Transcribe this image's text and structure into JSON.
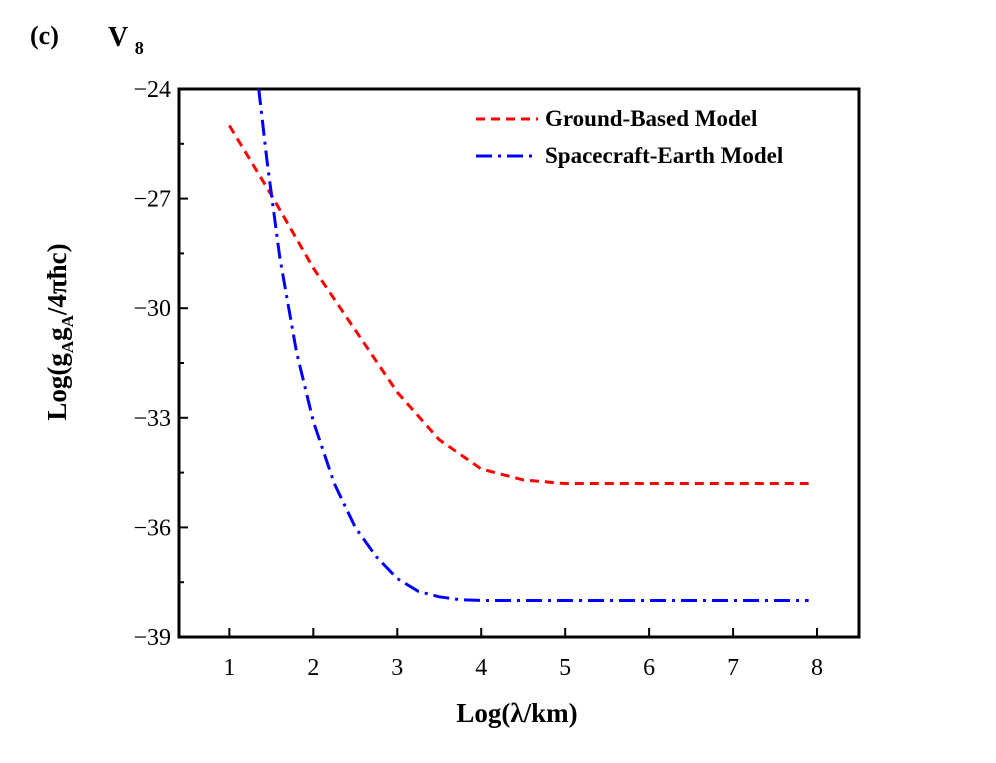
{
  "chart_data": {
    "type": "line",
    "panel_label": "(c)",
    "title": "V",
    "title_subscript": "8",
    "xlabel": "Log(λ/km)",
    "ylabel": {
      "prefix": "Log(g",
      "sub1": "A",
      "mid": "g",
      "sub2": "A",
      "suffix": "/4πħc)"
    },
    "xlim": [
      0.4,
      8.5
    ],
    "ylim": [
      -39,
      -24
    ],
    "xticks": [
      1,
      2,
      3,
      4,
      5,
      6,
      7,
      8
    ],
    "yticks": [
      -24,
      -27,
      -30,
      -33,
      -36,
      -39
    ],
    "xtick_labels": [
      "1",
      "2",
      "3",
      "4",
      "5",
      "6",
      "7",
      "8"
    ],
    "ytick_labels": [
      "−24",
      "−27",
      "−30",
      "−33",
      "−36",
      "−39"
    ],
    "grid": false,
    "legend_position": "top-right",
    "series": [
      {
        "name": "Ground-Based Model",
        "color": "#ff0000",
        "style": "dashed",
        "x": [
          1.0,
          1.5,
          2.0,
          2.5,
          3.0,
          3.5,
          4.0,
          4.5,
          5.0,
          5.5,
          6.0,
          6.5,
          7.0,
          7.5,
          7.9
        ],
        "y": [
          -25.0,
          -26.9,
          -28.9,
          -30.6,
          -32.3,
          -33.6,
          -34.4,
          -34.7,
          -34.8,
          -34.8,
          -34.8,
          -34.8,
          -34.8,
          -34.8,
          -34.8
        ]
      },
      {
        "name": "Spacecraft-Earth Model",
        "color": "#0000ff",
        "style": "dashdot",
        "x": [
          1.35,
          1.45,
          1.6,
          1.8,
          2.0,
          2.25,
          2.5,
          2.75,
          3.0,
          3.25,
          3.5,
          3.75,
          4.0,
          4.5,
          5.0,
          6.0,
          7.0,
          7.9
        ],
        "y": [
          -24.0,
          -26.0,
          -28.6,
          -31.2,
          -33.1,
          -34.8,
          -36.0,
          -36.8,
          -37.4,
          -37.75,
          -37.9,
          -37.98,
          -38.0,
          -38.0,
          -38.0,
          -38.0,
          -38.0,
          -38.0
        ]
      }
    ]
  }
}
